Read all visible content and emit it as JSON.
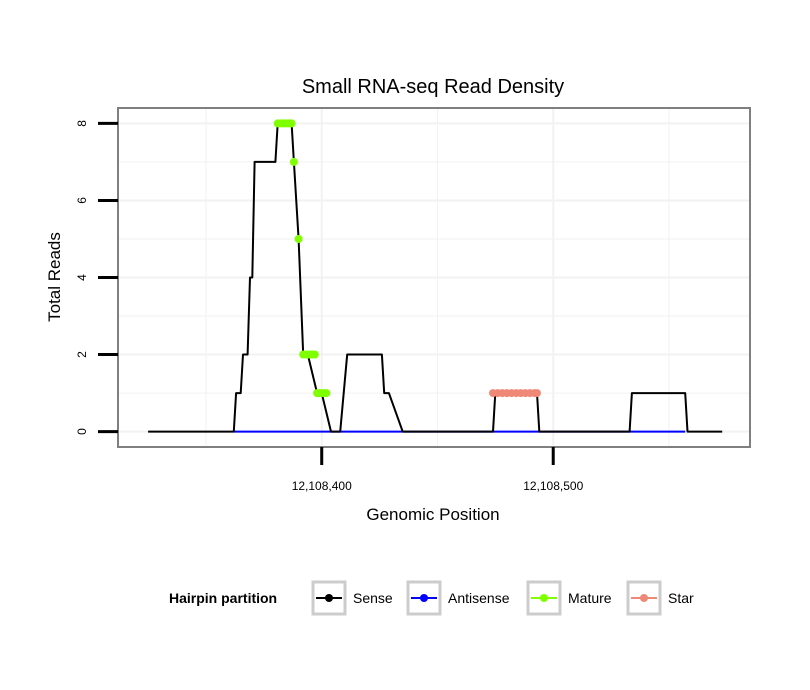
{
  "chart_data": {
    "type": "line",
    "title": "Small RNA-seq Read Density",
    "xlabel": "Genomic Position",
    "ylabel": "Total Reads",
    "xlim": [
      12108312,
      12108585
    ],
    "ylim": [
      -0.4,
      8.4
    ],
    "x_ticks": [
      {
        "value": 12108400,
        "label": "12,108,400"
      },
      {
        "value": 12108500,
        "label": "12,108,500"
      }
    ],
    "y_ticks": [
      {
        "value": 0,
        "label": "0"
      },
      {
        "value": 2,
        "label": "2"
      },
      {
        "value": 4,
        "label": "4"
      },
      {
        "value": 6,
        "label": "6"
      },
      {
        "value": 8,
        "label": "8"
      }
    ],
    "grid": true,
    "legend": {
      "title": "Hairpin partition",
      "position": "bottom",
      "entries": [
        "Sense",
        "Antisense",
        "Mature",
        "Star"
      ]
    },
    "colors": {
      "Sense": "#000000",
      "Antisense": "#0000ff",
      "Mature": "#7fff00",
      "Star": "#f08878",
      "panel_border": "#7f7f7f",
      "grid": "#f2f2f2"
    },
    "series": [
      {
        "name": "Sense",
        "x": [
          12108325,
          12108362,
          12108363,
          12108365,
          12108366,
          12108368,
          12108369,
          12108370,
          12108371,
          12108372,
          12108373,
          12108380,
          12108381,
          12108383,
          12108384,
          12108387,
          12108388,
          12108390,
          12108392,
          12108393,
          12108394,
          12108398,
          12108400,
          12108404,
          12108408,
          12108411,
          12108426,
          12108427,
          12108429,
          12108435,
          12108474,
          12108475,
          12108493,
          12108494,
          12108533,
          12108534,
          12108557,
          12108558,
          12108573
        ],
        "values": [
          0,
          0,
          1,
          1,
          2,
          2,
          4,
          4,
          7,
          7,
          7,
          7,
          8,
          8,
          8,
          8,
          7,
          5,
          2,
          2,
          2,
          1,
          1,
          0,
          0,
          2,
          2,
          1,
          1,
          0,
          0,
          1,
          1,
          0,
          0,
          1,
          1,
          0,
          0
        ]
      },
      {
        "name": "Antisense",
        "x": [
          12108362,
          12108398,
          12108404,
          12108557
        ],
        "values": [
          0,
          0,
          0,
          0
        ]
      },
      {
        "name": "Mature",
        "x": [
          12108381,
          12108382,
          12108383,
          12108384,
          12108385,
          12108386,
          12108387,
          12108388,
          12108390,
          12108392,
          12108393,
          12108394,
          12108395,
          12108396,
          12108397,
          12108398,
          12108399,
          12108400,
          12108401,
          12108402
        ],
        "values": [
          8,
          8,
          8,
          8,
          8,
          8,
          8,
          7,
          5,
          2,
          2,
          2,
          2,
          2,
          2,
          1,
          1,
          1,
          1,
          1
        ]
      },
      {
        "name": "Star",
        "x": [
          12108474,
          12108476,
          12108478,
          12108480,
          12108482,
          12108484,
          12108486,
          12108488,
          12108490,
          12108492,
          12108493
        ],
        "values": [
          1,
          1,
          1,
          1,
          1,
          1,
          1,
          1,
          1,
          1,
          1
        ]
      }
    ]
  }
}
